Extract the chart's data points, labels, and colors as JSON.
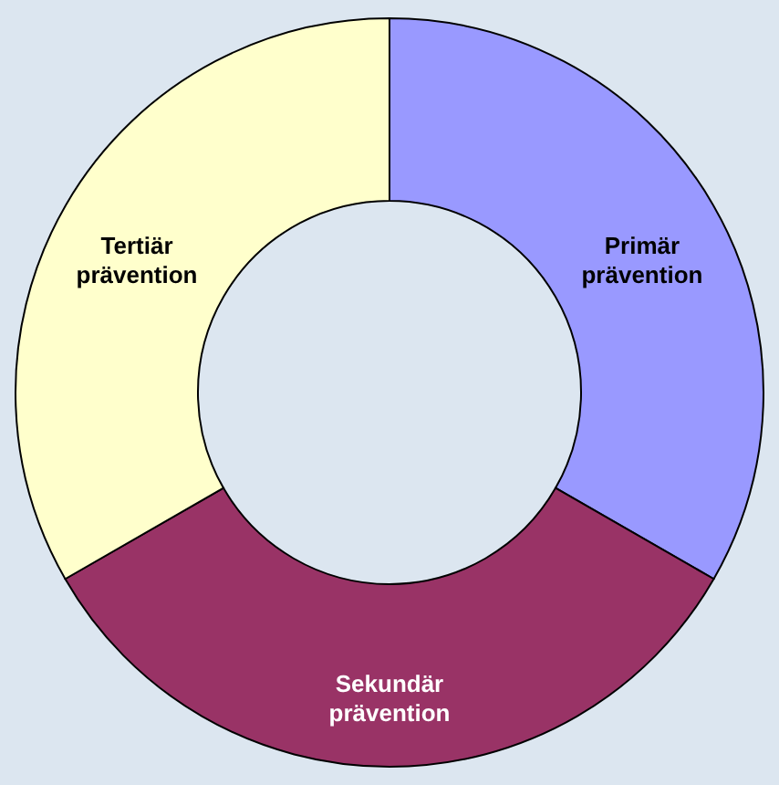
{
  "chart_data": {
    "type": "donut",
    "categories": [
      "Primär prävention",
      "Sekundär prävention",
      "Tertiär prävention"
    ],
    "values": [
      33.3,
      33.4,
      33.3
    ],
    "colors": [
      "#9999ff",
      "#993366",
      "#ffffcc"
    ]
  }
}
